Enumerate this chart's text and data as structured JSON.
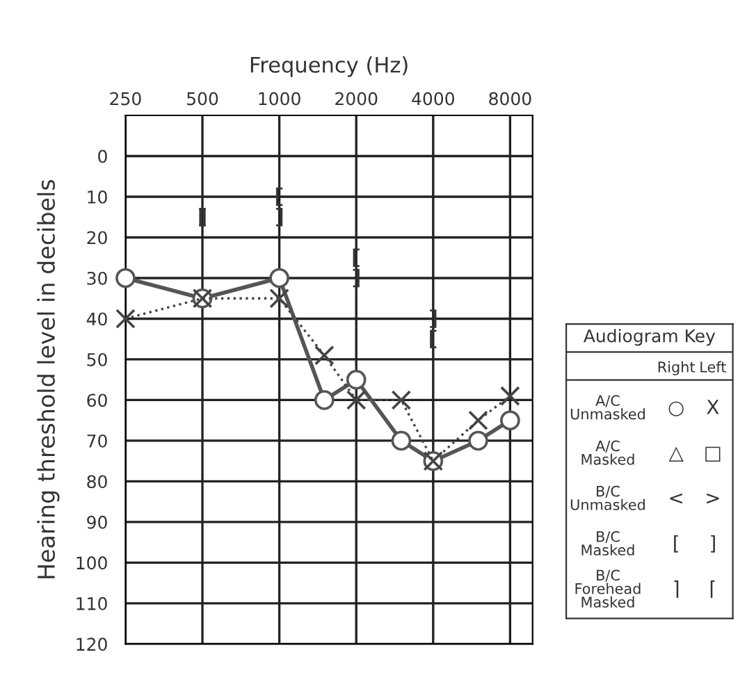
{
  "chart_data": [
    {
      "type": "line",
      "xlabel": "Frequency (Hz)",
      "ylabel": "Hearing threshold level in decibels",
      "log": "x",
      "xlim": [
        250,
        9800
      ],
      "xticks": [
        250,
        500,
        1000,
        2000,
        4000,
        8000
      ],
      "ylim": [
        120,
        -10
      ],
      "yticks": [
        0,
        10,
        20,
        30,
        40,
        50,
        60,
        70,
        80,
        90,
        100,
        110,
        120
      ],
      "grid": true,
      "series": [
        {
          "type": "line",
          "color": "#555555",
          "marker": "circle",
          "line_style": "solid",
          "x": [
            250,
            500,
            1000,
            1500,
            2000,
            3000,
            4000,
            6000,
            8000
          ],
          "values": [
            30,
            35,
            30,
            60,
            55,
            70,
            75,
            70,
            65
          ]
        },
        {
          "type": "line",
          "color": "#444444",
          "marker": "cross",
          "line_style": "dotted",
          "x": [
            250,
            500,
            1000,
            1500,
            2000,
            3000,
            4000,
            6000,
            8000
          ],
          "values": [
            40,
            35,
            35,
            49,
            60,
            60,
            75,
            65,
            59
          ]
        },
        {
          "type": "scatter",
          "color": "#333333",
          "x": [
            500,
            1000,
            2000,
            4000
          ],
          "values": [
            15,
            10,
            25,
            45
          ]
        },
        {
          "type": "scatter",
          "color": "#333333",
          "x": [
            500,
            1000,
            2000,
            4000
          ],
          "values": [
            15,
            15,
            30,
            40
          ]
        }
      ]
    },
    {
      "type": "other",
      "title": "Audiogram Key",
      "annotations": [
        "Right",
        "Left",
        "A/C\nUnmasked",
        "○",
        "X",
        "A/C\nMasked",
        "△",
        "□",
        "B/C\nUnmasked",
        "<",
        ">",
        "B/C\nMasked",
        "[",
        "]",
        "B/C\nForehead\nMasked",
        "⌉",
        "⌈"
      ]
    }
  ]
}
